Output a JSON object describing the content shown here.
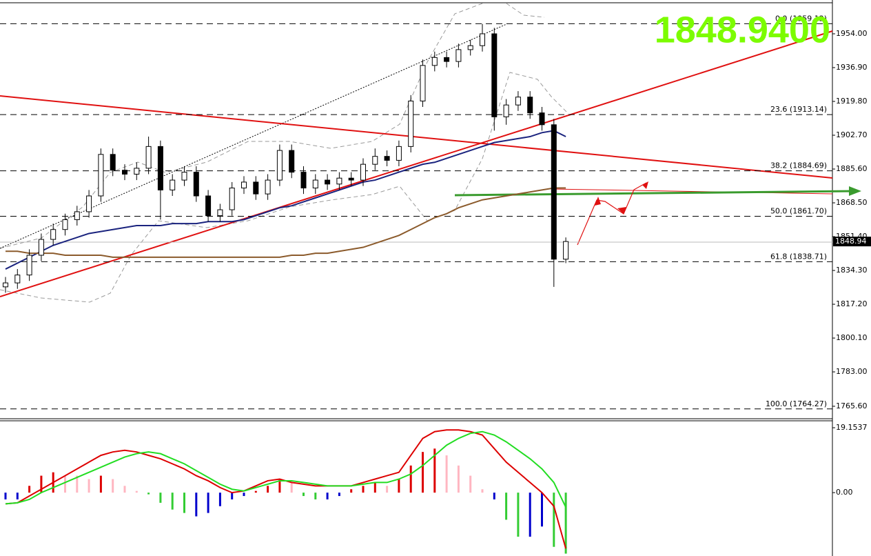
{
  "chart_data": [
    {
      "type": "candlestick",
      "open": [
        1826,
        1828,
        1832,
        1842,
        1850,
        1855,
        1860,
        1864,
        1872,
        1893,
        1885,
        1883,
        1886,
        1897,
        1875,
        1880,
        1884,
        1872,
        1862,
        1865,
        1876,
        1879,
        1873,
        1880,
        1895,
        1884,
        1876,
        1880,
        1878,
        1881,
        1880,
        1888,
        1892,
        1890,
        1897,
        1920,
        1938,
        1942,
        1940,
        1946,
        1948,
        1954,
        1912,
        1918,
        1922,
        1914,
        1908,
        1840
      ],
      "high": [
        1831,
        1835,
        1845,
        1853,
        1858,
        1863,
        1867,
        1875,
        1896,
        1896,
        1888,
        1889,
        1902,
        1900,
        1883,
        1887,
        1887,
        1875,
        1868,
        1879,
        1882,
        1882,
        1883,
        1898,
        1898,
        1887,
        1883,
        1883,
        1884,
        1884,
        1891,
        1896,
        1895,
        1900,
        1923,
        1941,
        1945,
        1945,
        1949,
        1951,
        1959,
        1957,
        1921,
        1925,
        1925,
        1917,
        1911,
        1851
      ],
      "low": [
        1823,
        1825,
        1829,
        1839,
        1847,
        1852,
        1857,
        1861,
        1869,
        1882,
        1880,
        1880,
        1883,
        1860,
        1872,
        1877,
        1869,
        1859,
        1859,
        1862,
        1873,
        1870,
        1870,
        1877,
        1881,
        1873,
        1873,
        1875,
        1875,
        1877,
        1877,
        1885,
        1887,
        1887,
        1894,
        1917,
        1935,
        1937,
        1937,
        1943,
        1945,
        1905,
        1908,
        1915,
        1911,
        1905,
        1826,
        1838
      ],
      "close": [
        1828,
        1832,
        1842,
        1850,
        1855,
        1860,
        1864,
        1872,
        1893,
        1885,
        1883,
        1886,
        1897,
        1875,
        1880,
        1884,
        1872,
        1862,
        1865,
        1876,
        1879,
        1873,
        1880,
        1895,
        1884,
        1876,
        1880,
        1878,
        1881,
        1880,
        1888,
        1892,
        1890,
        1897,
        1920,
        1938,
        1942,
        1940,
        1946,
        1948,
        1954,
        1912,
        1918,
        1922,
        1914,
        1908,
        1840,
        1848.94
      ],
      "up_color": "#ffffff",
      "down_color": "#000000",
      "moving_averages": [
        {
          "color": "#1a237e",
          "values": [
            1835,
            1838,
            1841,
            1844,
            1847,
            1849,
            1851,
            1853,
            1854,
            1855,
            1856,
            1857,
            1857,
            1857,
            1858,
            1858,
            1858,
            1859,
            1859,
            1859,
            1860,
            1862,
            1864,
            1866,
            1867,
            1869,
            1871,
            1873,
            1875,
            1877,
            1879,
            1880,
            1882,
            1884,
            1886,
            1888,
            1889,
            1891,
            1893,
            1895,
            1897,
            1899,
            1900,
            1901,
            1902,
            1904,
            1905,
            1902
          ]
        },
        {
          "color": "#8b5a2b",
          "values": [
            1844,
            1844,
            1843,
            1843,
            1843,
            1842,
            1842,
            1842,
            1842,
            1841,
            1841,
            1841,
            1841,
            1841,
            1841,
            1841,
            1841,
            1841,
            1841,
            1841,
            1841,
            1841,
            1841,
            1841,
            1842,
            1842,
            1843,
            1843,
            1844,
            1845,
            1846,
            1848,
            1850,
            1852,
            1855,
            1858,
            1861,
            1863,
            1866,
            1868,
            1870,
            1871,
            1872,
            1873,
            1874,
            1875,
            1876,
            1876
          ]
        }
      ],
      "fib_levels": [
        {
          "label": "0.0 (1959.12)",
          "value": 1959.12
        },
        {
          "label": "23.6 (1913.14)",
          "value": 1913.14
        },
        {
          "label": "38.2 (1884.69)",
          "value": 1884.69
        },
        {
          "label": "50.0 (1861.70)",
          "value": 1861.7
        },
        {
          "label": "61.8 (1838.71)",
          "value": 1838.71
        },
        {
          "label": "100.0 (1764.27)",
          "value": 1764.27
        }
      ],
      "last_price": 1848.94,
      "last_price_text": "1848.9400",
      "ylim": [
        1759.3,
        1969.35
      ],
      "yticks": [
        {
          "value": 1954,
          "label": "1954.00"
        },
        {
          "value": 1936.9,
          "label": "1936.90"
        },
        {
          "value": 1919.8,
          "label": "1919.80"
        },
        {
          "value": 1902.7,
          "label": "1902.70"
        },
        {
          "value": 1885.6,
          "label": "1885.60"
        },
        {
          "value": 1868.5,
          "label": "1868.50"
        },
        {
          "value": 1851.4,
          "label": "1851.40"
        },
        {
          "value": 1834.3,
          "label": "1834.30"
        },
        {
          "value": 1817.2,
          "label": "1817.20"
        },
        {
          "value": 1800.1,
          "label": "1800.10"
        },
        {
          "value": 1783,
          "label": "1783.00"
        },
        {
          "value": 1765.6,
          "label": "1765.60"
        }
      ]
    },
    {
      "type": "bar",
      "values": [
        -2,
        -2,
        2,
        5,
        6,
        5,
        5,
        4,
        5,
        4,
        2,
        0.5,
        -0.5,
        -3,
        -5,
        -6,
        -7,
        -6,
        -4,
        -2,
        -1,
        0.5,
        2,
        4,
        3,
        -1,
        -2,
        -2,
        -1,
        1,
        2,
        3,
        2,
        4,
        8,
        12,
        13,
        11,
        8,
        5,
        1,
        -2,
        -8,
        -13,
        -13,
        -10,
        -16,
        -18
      ],
      "colors": [
        "#0000cc",
        "#0000cc",
        "#dd0000",
        "#dd0000",
        "#dd0000",
        "#ffb6c1",
        "#ffb6c1",
        "#ffb6c1",
        "#dd0000",
        "#ffb6c1",
        "#ffb6c1",
        "#ffb6c1",
        "#33cc33",
        "#33cc33",
        "#33cc33",
        "#33cc33",
        "#0000cc",
        "#0000cc",
        "#0000cc",
        "#0000cc",
        "#0000cc",
        "#dd0000",
        "#dd0000",
        "#dd0000",
        "#ffb6c1",
        "#33cc33",
        "#33cc33",
        "#0000cc",
        "#0000cc",
        "#dd0000",
        "#dd0000",
        "#dd0000",
        "#ffb6c1",
        "#dd0000",
        "#dd0000",
        "#dd0000",
        "#dd0000",
        "#ffb6c1",
        "#ffb6c1",
        "#ffb6c1",
        "#ffb6c1",
        "#0000cc",
        "#33cc33",
        "#33cc33",
        "#0000cc",
        "#0000cc",
        "#33cc33",
        "#33cc33"
      ],
      "lines": [
        {
          "color": "#dd0000",
          "values": [
            -3.3,
            -3,
            -1,
            1,
            3,
            5,
            7,
            9,
            11,
            12,
            12.5,
            12,
            11,
            10,
            8.5,
            7,
            5,
            3.5,
            1.5,
            0,
            0.5,
            2,
            3.5,
            4,
            3,
            2.5,
            2,
            2,
            2,
            2,
            3,
            4,
            5,
            6,
            11,
            16,
            18,
            18.5,
            18.5,
            18,
            17,
            13,
            9,
            6,
            3,
            0,
            -4,
            -16.5
          ]
        },
        {
          "color": "#22dd22",
          "values": [
            -3.3,
            -3,
            -2,
            0,
            1.5,
            3,
            4.5,
            6,
            7.5,
            9,
            10.5,
            11.5,
            12,
            11.5,
            10,
            8.5,
            6.5,
            4.5,
            2.5,
            1,
            0.5,
            1.5,
            2.5,
            3.5,
            3.5,
            3,
            2.5,
            2,
            2,
            2,
            2.5,
            3,
            3,
            4,
            5.5,
            8,
            11,
            14,
            16,
            17.5,
            18,
            17,
            15,
            12.5,
            10,
            7,
            3,
            -4.3
          ]
        }
      ],
      "ylim": [
        -18.7,
        21.2
      ],
      "yticks": [
        {
          "value": 19.1537,
          "label": "19.1537"
        },
        {
          "value": 0,
          "label": "0.00"
        }
      ]
    }
  ]
}
